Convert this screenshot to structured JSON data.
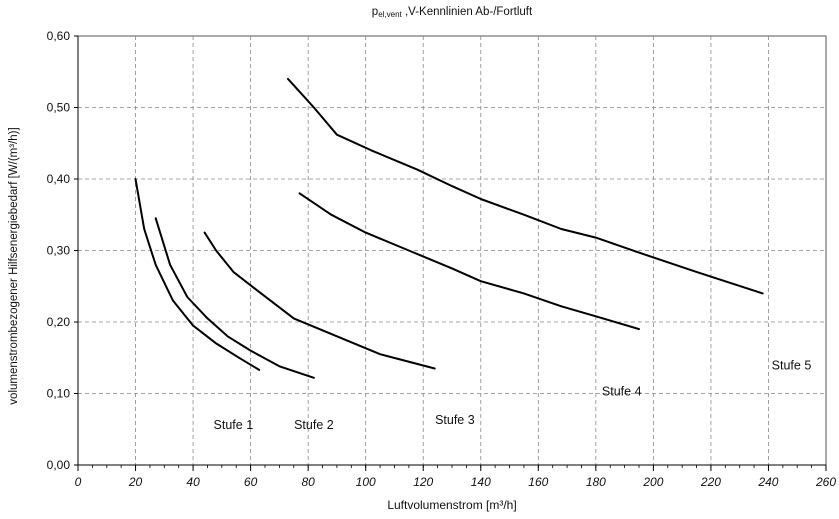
{
  "chart_data": {
    "type": "line",
    "title": {
      "main": "p",
      "sub": "el,vent",
      "rest": " ,V-Kennlinien Ab-/Fortluft"
    },
    "xlabel": "Luftvolumenstrom [m³/h]",
    "ylabel": "volumenstrombezogener Hilfsenergiebedarf [W/(m³/h)]",
    "xlim": [
      0,
      260
    ],
    "ylim": [
      0,
      0.6
    ],
    "x_ticks": [
      0,
      20,
      40,
      60,
      80,
      100,
      120,
      140,
      160,
      180,
      200,
      220,
      240,
      260
    ],
    "x_tick_labels": [
      "0",
      "20",
      "40",
      "60",
      "80",
      "100",
      "120",
      "140",
      "160",
      "180",
      "200",
      "220",
      "240",
      "260"
    ],
    "y_ticks": [
      0,
      0.1,
      0.2,
      0.3,
      0.4,
      0.5,
      0.6
    ],
    "y_tick_labels": [
      "0,00",
      "0,10",
      "0,20",
      "0,30",
      "0,40",
      "0,50",
      "0,60"
    ],
    "grid": true,
    "line_color": "#000000",
    "series": [
      {
        "name": "Stufe 1",
        "points": [
          [
            20,
            0.4
          ],
          [
            23,
            0.33
          ],
          [
            27,
            0.28
          ],
          [
            33,
            0.23
          ],
          [
            40,
            0.195
          ],
          [
            48,
            0.17
          ],
          [
            56,
            0.15
          ],
          [
            63,
            0.133
          ]
        ]
      },
      {
        "name": "Stufe 2",
        "points": [
          [
            27,
            0.345
          ],
          [
            32,
            0.28
          ],
          [
            38,
            0.235
          ],
          [
            45,
            0.205
          ],
          [
            52,
            0.18
          ],
          [
            60,
            0.16
          ],
          [
            70,
            0.138
          ],
          [
            82,
            0.122
          ]
        ]
      },
      {
        "name": "Stufe 3",
        "points": [
          [
            44,
            0.325
          ],
          [
            48,
            0.3
          ],
          [
            54,
            0.27
          ],
          [
            62,
            0.245
          ],
          [
            75,
            0.205
          ],
          [
            90,
            0.18
          ],
          [
            105,
            0.155
          ],
          [
            124,
            0.135
          ]
        ]
      },
      {
        "name": "Stufe 4",
        "points": [
          [
            77,
            0.38
          ],
          [
            88,
            0.35
          ],
          [
            100,
            0.325
          ],
          [
            115,
            0.3
          ],
          [
            130,
            0.275
          ],
          [
            140,
            0.257
          ],
          [
            155,
            0.24
          ],
          [
            168,
            0.222
          ],
          [
            180,
            0.208
          ],
          [
            195,
            0.19
          ]
        ]
      },
      {
        "name": "Stufe 5",
        "points": [
          [
            73,
            0.54
          ],
          [
            82,
            0.5
          ],
          [
            90,
            0.462
          ],
          [
            102,
            0.44
          ],
          [
            118,
            0.413
          ],
          [
            130,
            0.39
          ],
          [
            140,
            0.372
          ],
          [
            155,
            0.35
          ],
          [
            168,
            0.33
          ],
          [
            180,
            0.318
          ],
          [
            195,
            0.297
          ],
          [
            215,
            0.27
          ],
          [
            238,
            0.24
          ]
        ]
      }
    ],
    "annotations": [
      {
        "text": "Stufe 1",
        "x": 54,
        "y": 0.056
      },
      {
        "text": "Stufe 2",
        "x": 82,
        "y": 0.056
      },
      {
        "text": "Stufe 3",
        "x": 131,
        "y": 0.063
      },
      {
        "text": "Stufe 4",
        "x": 189,
        "y": 0.103
      },
      {
        "text": "Stufe 5",
        "x": 248,
        "y": 0.139
      }
    ]
  }
}
